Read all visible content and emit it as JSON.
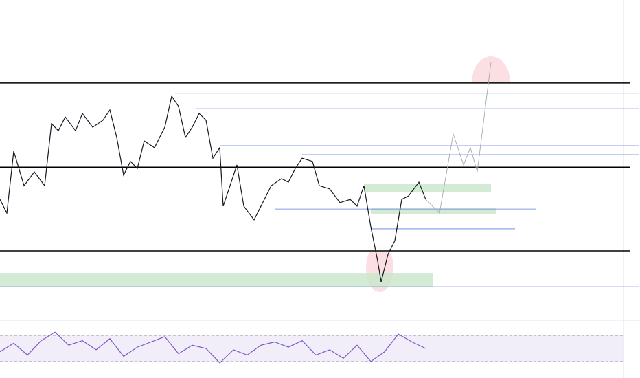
{
  "chart_data": [
    {
      "type": "line",
      "xlim": [
        0,
        932
      ],
      "ylim": [
        0,
        100
      ],
      "levels": [
        74.0,
        47.7,
        21.5
      ],
      "guides": [
        {
          "x": [
            255,
            930
          ],
          "y": 70.8
        },
        {
          "x": [
            285,
            930
          ],
          "y": 66.0
        },
        {
          "x": [
            320,
            930
          ],
          "y": 54.4
        },
        {
          "x": [
            440,
            930
          ],
          "y": 51.6
        },
        {
          "x": [
            400,
            780
          ],
          "y": 34.6
        },
        {
          "x": [
            540,
            750
          ],
          "y": 28.4
        },
        {
          "x": [
            0,
            930
          ],
          "y": 10.3
        }
      ],
      "zones": [
        {
          "x": [
            530,
            715
          ],
          "y": [
            39.8,
            42.4
          ]
        },
        {
          "x": [
            540,
            722
          ],
          "y": [
            32.9,
            34.8
          ]
        },
        {
          "x": [
            0,
            630
          ],
          "y": [
            10.1,
            14.6
          ]
        }
      ],
      "series": [
        {
          "color": "#131722",
          "x": [
            0,
            10,
            20,
            35,
            50,
            65,
            75,
            85,
            95,
            110,
            120,
            135,
            150,
            160,
            170,
            180,
            190,
            200,
            210,
            225,
            240,
            250,
            260,
            270,
            280,
            290,
            300,
            310,
            320,
            325,
            335,
            345,
            355,
            370,
            385,
            395,
            410,
            420,
            430,
            440,
            455,
            465,
            480,
            495,
            510,
            520,
            530,
            540,
            550,
            555,
            565,
            575,
            585,
            595,
            610,
            620
          ],
          "values": [
            37.6,
            33.3,
            52.7,
            41.9,
            46.2,
            41.9,
            61.3,
            59.1,
            63.4,
            59.1,
            64.5,
            60.2,
            62.4,
            65.6,
            57.0,
            45.2,
            49.5,
            47.3,
            55.9,
            53.8,
            60.2,
            69.9,
            66.7,
            57.0,
            60.2,
            64.5,
            62.4,
            50.5,
            53.8,
            35.5,
            41.9,
            48.4,
            35.5,
            31.2,
            37.6,
            41.9,
            44.1,
            43.0,
            47.3,
            50.5,
            49.5,
            41.9,
            40.9,
            36.6,
            37.6,
            35.5,
            41.9,
            29.0,
            18.3,
            11.8,
            20.4,
            24.7,
            37.6,
            38.7,
            43.0,
            37.6
          ]
        },
        {
          "color": "#a3a8b8",
          "x": [
            620,
            640,
            660,
            675,
            685,
            695,
            715
          ],
          "values": [
            37.6,
            33.3,
            58.1,
            48.4,
            53.8,
            46.2,
            80.6
          ]
        }
      ]
    },
    {
      "type": "line",
      "xlim": [
        0,
        932
      ],
      "ylim": [
        10,
        90
      ],
      "bands": [
        70,
        30
      ],
      "series": [
        {
          "color": "#7e57c2",
          "x": [
            0,
            20,
            40,
            60,
            80,
            100,
            120,
            140,
            160,
            180,
            200,
            220,
            240,
            260,
            280,
            300,
            320,
            340,
            360,
            380,
            400,
            420,
            440,
            460,
            480,
            500,
            520,
            540,
            560,
            580,
            600,
            620
          ],
          "values": [
            45,
            58,
            40,
            62,
            75,
            55,
            62,
            48,
            65,
            38,
            52,
            60,
            68,
            42,
            55,
            50,
            28,
            48,
            40,
            55,
            60,
            52,
            62,
            40,
            48,
            35,
            55,
            30,
            45,
            72,
            60,
            50
          ]
        }
      ]
    }
  ]
}
